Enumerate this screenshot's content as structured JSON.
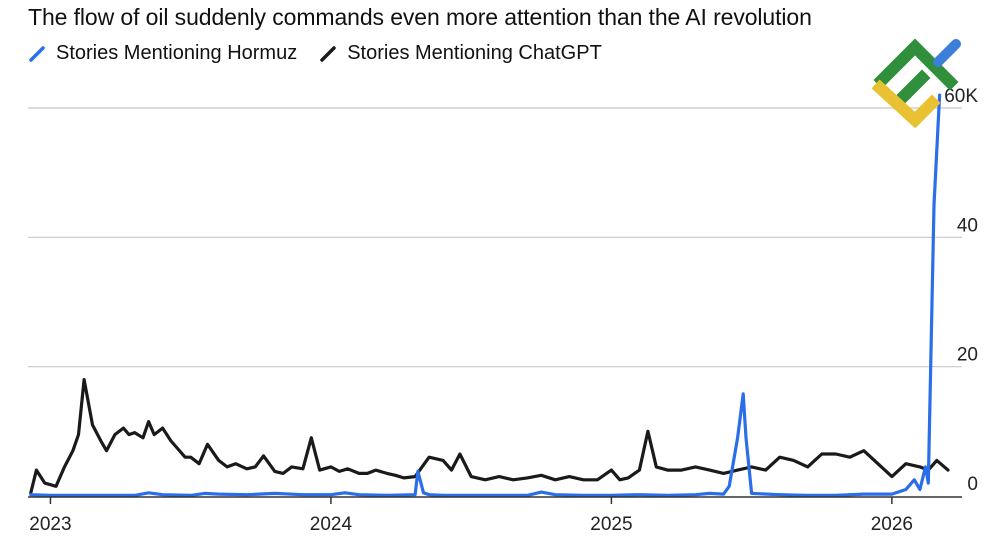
{
  "chart_data": {
    "type": "line",
    "title": "The flow of oil suddenly commands even more attention than the AI revolution",
    "xlabel": "",
    "ylabel": "",
    "y_unit_suffix": "K",
    "ylim": [
      0,
      60
    ],
    "xlim": [
      2022.92,
      2026.25
    ],
    "y_ticks": [
      0,
      20,
      40,
      60
    ],
    "y_tick_labels": [
      "0",
      "20",
      "40",
      "60K"
    ],
    "x_ticks": [
      2023,
      2024,
      2025,
      2026
    ],
    "x_tick_labels": [
      "2023",
      "2024",
      "2025",
      "2026"
    ],
    "grid": "horizontal",
    "legend_position": "top-left",
    "series": [
      {
        "name": "Stories Mentioning Hormuz",
        "color": "#2a6ee8",
        "x": [
          2022.93,
          2023.0,
          2023.1,
          2023.2,
          2023.3,
          2023.35,
          2023.4,
          2023.5,
          2023.55,
          2023.6,
          2023.7,
          2023.8,
          2023.9,
          2024.0,
          2024.05,
          2024.1,
          2024.2,
          2024.3,
          2024.31,
          2024.33,
          2024.35,
          2024.4,
          2024.5,
          2024.6,
          2024.7,
          2024.75,
          2024.8,
          2024.9,
          2025.0,
          2025.1,
          2025.2,
          2025.3,
          2025.35,
          2025.4,
          2025.42,
          2025.45,
          2025.47,
          2025.48,
          2025.5,
          2025.6,
          2025.7,
          2025.8,
          2025.9,
          2026.0,
          2026.05,
          2026.08,
          2026.1,
          2026.12,
          2026.13,
          2026.15,
          2026.17
        ],
        "values": [
          0.2,
          0.1,
          0.1,
          0.1,
          0.1,
          0.5,
          0.2,
          0.1,
          0.4,
          0.3,
          0.2,
          0.4,
          0.2,
          0.2,
          0.5,
          0.2,
          0.1,
          0.2,
          3.8,
          0.5,
          0.2,
          0.1,
          0.1,
          0.1,
          0.1,
          0.6,
          0.2,
          0.1,
          0.1,
          0.2,
          0.1,
          0.2,
          0.4,
          0.3,
          1.5,
          9,
          15.8,
          9,
          0.4,
          0.2,
          0.1,
          0.1,
          0.3,
          0.3,
          1.0,
          2.5,
          1.0,
          4.5,
          2.0,
          45,
          62
        ]
      },
      {
        "name": "Stories Mentioning ChatGPT",
        "color": "#1a1a1a",
        "x": [
          2022.93,
          2022.95,
          2022.98,
          2023.02,
          2023.05,
          2023.08,
          2023.1,
          2023.12,
          2023.15,
          2023.18,
          2023.2,
          2023.23,
          2023.26,
          2023.28,
          2023.3,
          2023.33,
          2023.35,
          2023.37,
          2023.4,
          2023.43,
          2023.45,
          2023.48,
          2023.5,
          2023.53,
          2023.56,
          2023.6,
          2023.63,
          2023.66,
          2023.7,
          2023.73,
          2023.76,
          2023.8,
          2023.83,
          2023.86,
          2023.9,
          2023.93,
          2023.96,
          2024.0,
          2024.03,
          2024.06,
          2024.1,
          2024.13,
          2024.16,
          2024.2,
          2024.23,
          2024.26,
          2024.3,
          2024.35,
          2024.4,
          2024.43,
          2024.46,
          2024.5,
          2024.55,
          2024.6,
          2024.65,
          2024.7,
          2024.75,
          2024.8,
          2024.85,
          2024.9,
          2024.95,
          2025.0,
          2025.03,
          2025.06,
          2025.1,
          2025.13,
          2025.16,
          2025.2,
          2025.25,
          2025.3,
          2025.35,
          2025.4,
          2025.45,
          2025.5,
          2025.55,
          2025.6,
          2025.65,
          2025.7,
          2025.75,
          2025.8,
          2025.85,
          2025.9,
          2025.95,
          2026.0,
          2026.05,
          2026.1,
          2026.13,
          2026.16,
          2026.2
        ],
        "values": [
          0.5,
          4.0,
          2.0,
          1.5,
          4.5,
          7.0,
          9.5,
          18.0,
          11.0,
          8.5,
          7.0,
          9.5,
          10.5,
          9.5,
          9.8,
          9.0,
          11.5,
          9.5,
          10.5,
          8.5,
          7.5,
          6.0,
          6.0,
          5.0,
          8.0,
          5.5,
          4.5,
          5.0,
          4.2,
          4.5,
          6.2,
          3.8,
          3.5,
          4.5,
          4.2,
          9.0,
          4.0,
          4.5,
          3.8,
          4.2,
          3.5,
          3.5,
          4.0,
          3.5,
          3.2,
          2.8,
          3.0,
          6.0,
          5.5,
          4.0,
          6.5,
          3.0,
          2.5,
          3.0,
          2.5,
          2.8,
          3.2,
          2.5,
          3.0,
          2.5,
          2.5,
          4.0,
          2.5,
          2.8,
          4.0,
          10.0,
          4.5,
          4.0,
          4.0,
          4.5,
          4.0,
          3.5,
          4.0,
          4.5,
          4.0,
          6.0,
          5.5,
          4.5,
          6.5,
          6.5,
          6.0,
          7.0,
          5.0,
          3.0,
          5.0,
          4.5,
          4.0,
          5.5,
          4.0
        ]
      }
    ]
  },
  "legend_labels": {
    "hormuz": "Stories Mentioning Hormuz",
    "chatgpt": "Stories Mentioning ChatGPT"
  },
  "logo": {
    "colors": [
      "#2f8f3a",
      "#3b7fd8",
      "#e8c232"
    ]
  }
}
